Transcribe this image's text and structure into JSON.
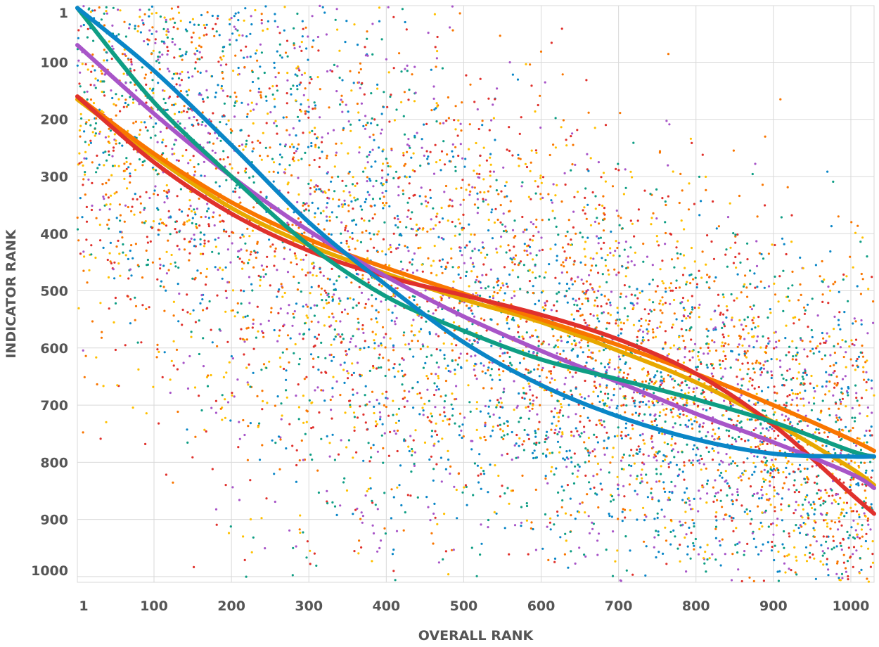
{
  "chart_data": {
    "type": "scatter",
    "xlabel": "OVERALL RANK",
    "ylabel": "INDICATOR RANK",
    "xlim": [
      1,
      1030
    ],
    "ylim": [
      1,
      1010
    ],
    "y_inverted": true,
    "grid": true,
    "x_ticks": [
      1,
      100,
      200,
      300,
      400,
      500,
      600,
      700,
      800,
      900,
      1000
    ],
    "y_ticks": [
      1,
      100,
      200,
      300,
      400,
      500,
      600,
      700,
      800,
      900,
      1000
    ],
    "x_tick_labels": [
      "1",
      "100",
      "200",
      "300",
      "400",
      "500",
      "600",
      "700",
      "800",
      "900",
      "1000"
    ],
    "y_tick_labels": [
      "1",
      "100",
      "200",
      "300",
      "400",
      "500",
      "600",
      "700",
      "800",
      "900",
      "1000"
    ],
    "scatter_points_per_series": 1000,
    "series": [
      {
        "color": "#E8A800",
        "dot_color": "#FFC000",
        "trend": [
          [
            1,
            165
          ],
          [
            100,
            265
          ],
          [
            200,
            355
          ],
          [
            300,
            420
          ],
          [
            400,
            470
          ],
          [
            500,
            515
          ],
          [
            600,
            555
          ],
          [
            700,
            605
          ],
          [
            800,
            660
          ],
          [
            900,
            730
          ],
          [
            1000,
            810
          ],
          [
            1030,
            840
          ]
        ]
      },
      {
        "color": "#F97600",
        "dot_color": "#F97600",
        "trend": [
          [
            1,
            160
          ],
          [
            100,
            260
          ],
          [
            200,
            345
          ],
          [
            300,
            410
          ],
          [
            400,
            460
          ],
          [
            500,
            505
          ],
          [
            600,
            550
          ],
          [
            700,
            595
          ],
          [
            800,
            645
          ],
          [
            900,
            700
          ],
          [
            1000,
            760
          ],
          [
            1030,
            780
          ]
        ]
      },
      {
        "color": "#E0312C",
        "dot_color": "#E0312C",
        "trend": [
          [
            1,
            160
          ],
          [
            100,
            275
          ],
          [
            200,
            365
          ],
          [
            300,
            430
          ],
          [
            400,
            475
          ],
          [
            500,
            508
          ],
          [
            600,
            542
          ],
          [
            700,
            585
          ],
          [
            800,
            645
          ],
          [
            900,
            735
          ],
          [
            1000,
            855
          ],
          [
            1030,
            890
          ]
        ]
      },
      {
        "color": "#A855C8",
        "dot_color": "#A855C8",
        "trend": [
          [
            1,
            70
          ],
          [
            100,
            190
          ],
          [
            200,
            300
          ],
          [
            300,
            395
          ],
          [
            400,
            475
          ],
          [
            500,
            545
          ],
          [
            600,
            605
          ],
          [
            700,
            660
          ],
          [
            800,
            715
          ],
          [
            900,
            765
          ],
          [
            1000,
            820
          ],
          [
            1030,
            845
          ]
        ]
      },
      {
        "color": "#0F9E84",
        "dot_color": "#0F9E84",
        "trend": [
          [
            1,
            5
          ],
          [
            100,
            170
          ],
          [
            200,
            300
          ],
          [
            300,
            420
          ],
          [
            400,
            510
          ],
          [
            500,
            570
          ],
          [
            600,
            620
          ],
          [
            700,
            655
          ],
          [
            800,
            690
          ],
          [
            900,
            730
          ],
          [
            1000,
            780
          ],
          [
            1030,
            790
          ]
        ]
      },
      {
        "color": "#0A86C7",
        "dot_color": "#0A86C7",
        "trend": [
          [
            1,
            5
          ],
          [
            100,
            115
          ],
          [
            200,
            245
          ],
          [
            300,
            380
          ],
          [
            400,
            490
          ],
          [
            500,
            590
          ],
          [
            600,
            665
          ],
          [
            700,
            720
          ],
          [
            800,
            760
          ],
          [
            900,
            785
          ],
          [
            1000,
            790
          ],
          [
            1030,
            790
          ]
        ]
      }
    ]
  }
}
